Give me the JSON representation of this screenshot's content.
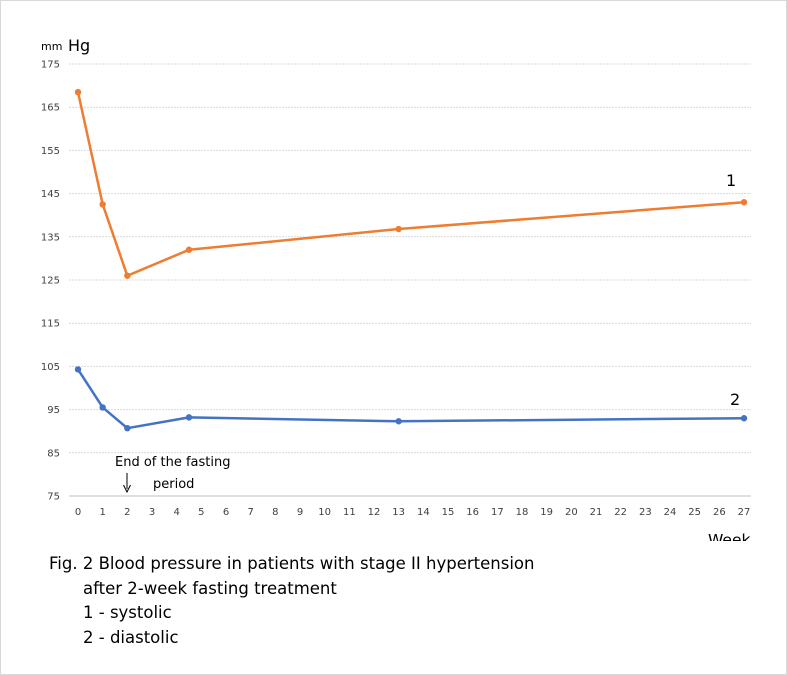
{
  "caption": {
    "line1": "Fig. 2 Blood pressure in patients with stage II hypertension",
    "line2": "after 2-week fasting treatment",
    "line3": "1 - systolic",
    "line4": "2 - diastolic"
  },
  "chart_data": {
    "type": "line",
    "ylabel_small": "mm",
    "ylabel_large": "Hg",
    "xlabel": "Week",
    "ylim": [
      75,
      175
    ],
    "yticks": [
      75,
      85,
      95,
      105,
      115,
      125,
      135,
      145,
      155,
      165,
      175
    ],
    "xticks": [
      0,
      1,
      2,
      3,
      4,
      5,
      6,
      7,
      8,
      9,
      10,
      11,
      12,
      13,
      14,
      15,
      16,
      17,
      18,
      19,
      20,
      21,
      22,
      23,
      24,
      25,
      26,
      27
    ],
    "grid": true,
    "series": [
      {
        "name": "1",
        "color": "#ED7D31",
        "points": [
          [
            0,
            168.5
          ],
          [
            1,
            142.5
          ],
          [
            2,
            126
          ],
          [
            4.5,
            132
          ],
          [
            13,
            136.8
          ],
          [
            27,
            143
          ]
        ]
      },
      {
        "name": "2",
        "color": "#4472C4",
        "points": [
          [
            0,
            104.3
          ],
          [
            1,
            95.5
          ],
          [
            2,
            90.7
          ],
          [
            4.5,
            93.2
          ],
          [
            13,
            92.3
          ],
          [
            27,
            93
          ]
        ]
      }
    ],
    "annotation": {
      "line1": "End of the fasting",
      "line2": "period",
      "arrow_x": 2
    }
  }
}
